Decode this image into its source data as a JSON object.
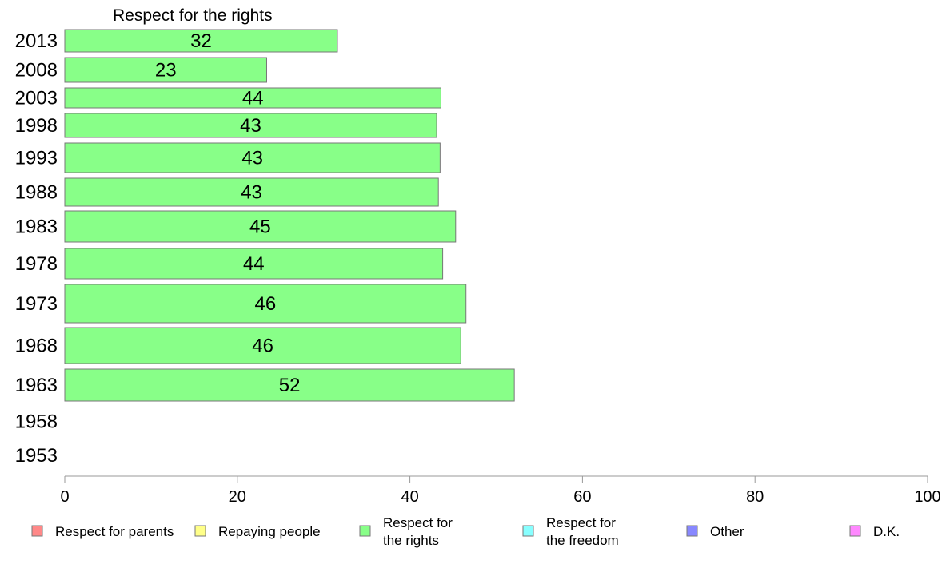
{
  "chart_data": {
    "type": "bar",
    "orientation": "horizontal",
    "title": "Respect for the rights",
    "xlabel": "",
    "ylabel": "",
    "xlim": [
      0,
      100
    ],
    "x_ticks": [
      0,
      20,
      40,
      60,
      80,
      100
    ],
    "grid": false,
    "legend_position": "bottom",
    "categories": [
      "2013",
      "2008",
      "2003",
      "1998",
      "1993",
      "1988",
      "1983",
      "1978",
      "1973",
      "1968",
      "1963",
      "1958",
      "1953"
    ],
    "series": [
      {
        "name": "Respect for the rights",
        "color": "#88ff88",
        "values": [
          31.6,
          23.4,
          43.6,
          43.1,
          43.5,
          43.3,
          45.3,
          43.8,
          46.5,
          45.9,
          52.1,
          null,
          null
        ],
        "labels": [
          "32",
          "23",
          "44",
          "43",
          "43",
          "43",
          "45",
          "44",
          "46",
          "46",
          "52",
          "",
          ""
        ]
      }
    ],
    "legend": [
      {
        "label": "Respect for parents",
        "color": "#ff8888"
      },
      {
        "label": "Repaying people",
        "color": "#ffff88"
      },
      {
        "label": "Respect for the rights",
        "color": "#88ff88"
      },
      {
        "label": "Respect for the freedom",
        "color": "#88ffff"
      },
      {
        "label": "Other",
        "color": "#8888ff"
      },
      {
        "label": "D.K.",
        "color": "#ff88ff"
      }
    ]
  }
}
